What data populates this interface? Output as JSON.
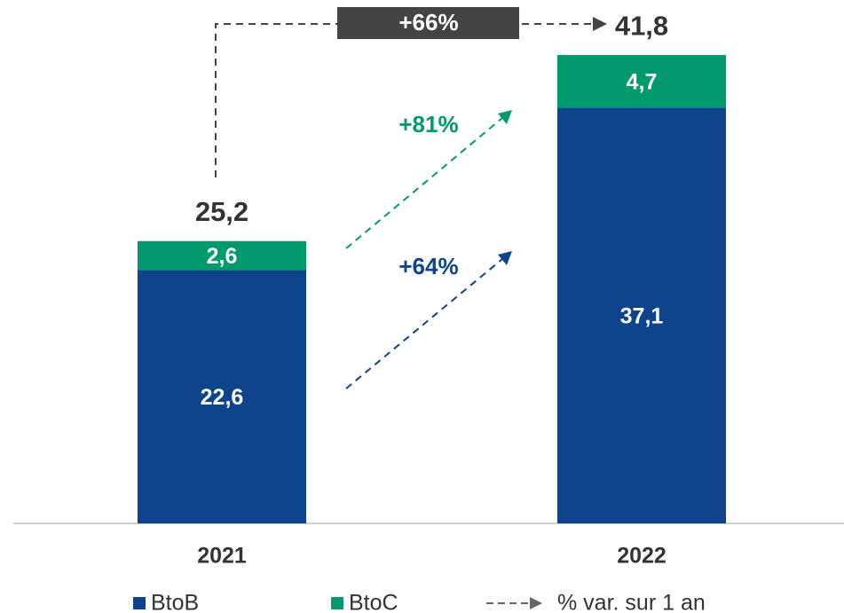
{
  "chart_data": {
    "type": "stacked_bar",
    "categories": [
      "2021",
      "2022"
    ],
    "series": [
      {
        "name": "BtoB",
        "color": "#0d448b",
        "values": [
          22.6,
          37.1
        ],
        "value_labels": [
          "22,6",
          "37,1"
        ]
      },
      {
        "name": "BtoC",
        "color": "#009a6e",
        "values": [
          2.6,
          4.7
        ],
        "value_labels": [
          "2,6",
          "4,7"
        ]
      }
    ],
    "totals": [
      25.2,
      41.8
    ],
    "total_labels": [
      "25,2",
      "41,8"
    ],
    "annotations": [
      "+66%",
      "+81%",
      "+64%"
    ],
    "change_legend": "% var. sur 1 an"
  }
}
